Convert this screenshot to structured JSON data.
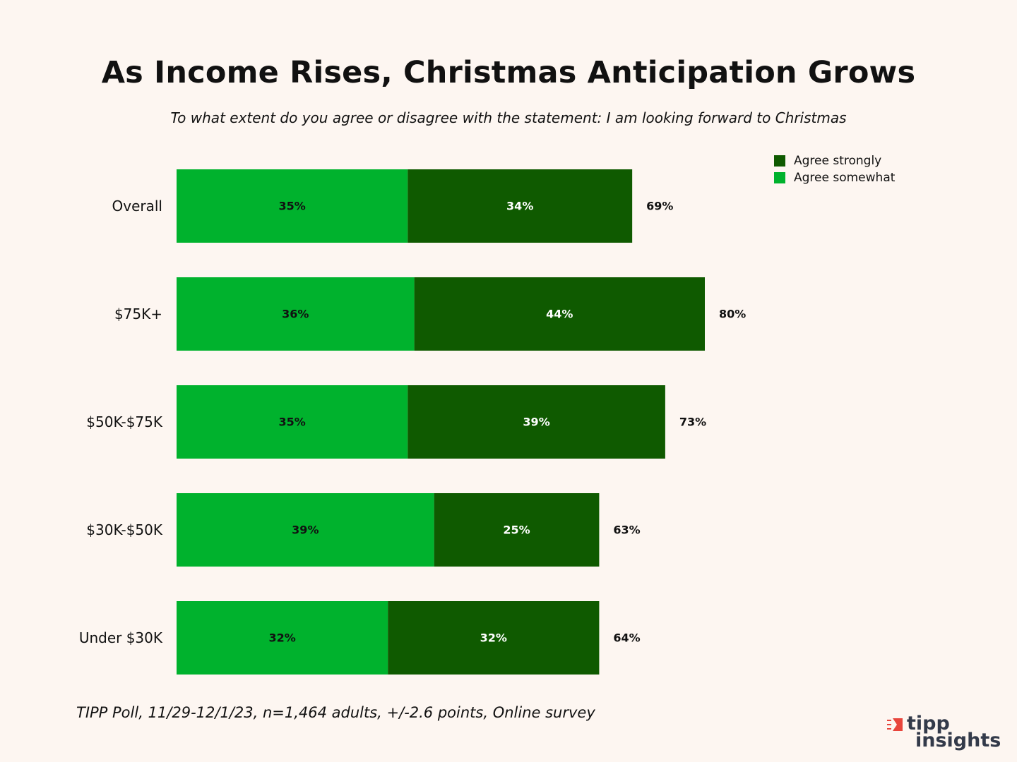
{
  "colors": {
    "background": "#fdf6f1",
    "agree_somewhat": "#00b22d",
    "agree_strongly": "#0f5a00",
    "logo_red": "#e8453c",
    "logo_text": "#333a4a"
  },
  "chart_data": {
    "type": "bar",
    "orientation": "horizontal",
    "stacked": true,
    "title": "As Income Rises, Christmas Anticipation Grows",
    "subtitle": "To what extent do you agree or disagree with the statement: I am looking forward to Christmas",
    "categories": [
      "Overall",
      "$75K+",
      "$50K-$75K",
      "$30K-$50K",
      "Under $30K"
    ],
    "series": [
      {
        "name": "Agree somewhat",
        "values": [
          35,
          36,
          35,
          39,
          32
        ],
        "labels": [
          "35%",
          "36%",
          "35%",
          "39%",
          "32%"
        ]
      },
      {
        "name": "Agree strongly",
        "values": [
          34,
          44,
          39,
          25,
          32
        ],
        "labels": [
          "34%",
          "44%",
          "39%",
          "25%",
          "32%"
        ]
      }
    ],
    "totals": [
      69,
      80,
      73,
      63,
      64
    ],
    "total_labels": [
      "69%",
      "80%",
      "73%",
      "63%",
      "64%"
    ],
    "legend": {
      "position": "top-right",
      "entries": [
        "Agree strongly",
        "Agree somewhat"
      ]
    },
    "xlabel": "",
    "ylabel": "",
    "xlim": [
      0,
      100
    ],
    "grid": false
  },
  "footer": "TIPP Poll, 11/29-12/1/23, n=1,464 adults, +/-2.6 points, Online survey",
  "logo": {
    "line1": "tipp",
    "line2": "insights"
  }
}
